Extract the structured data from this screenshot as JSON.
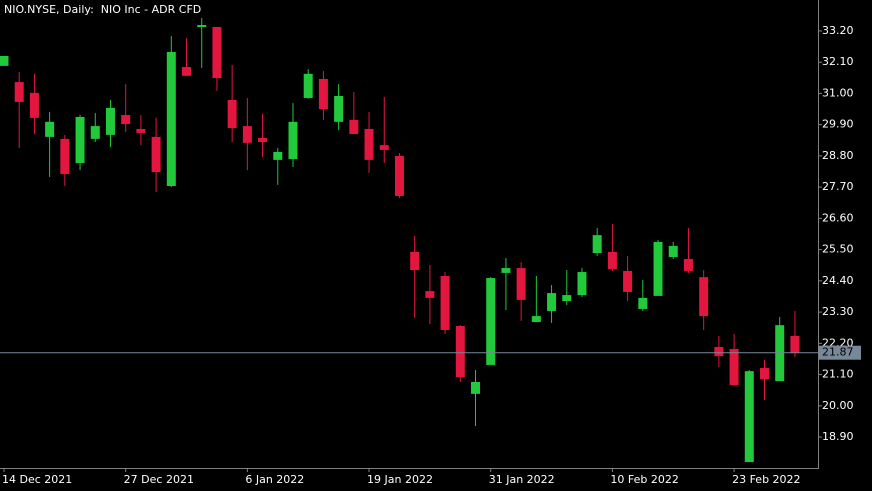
{
  "chart_data": {
    "type": "candlestick",
    "title": "NIO.NYSE, Daily:  NIO Inc - ADR CFD",
    "categories": [
      "14 Dec 2021",
      null,
      null,
      null,
      null,
      null,
      null,
      null,
      "27 Dec 2021",
      null,
      null,
      null,
      null,
      null,
      null,
      null,
      "6 Jan 2022",
      null,
      null,
      null,
      null,
      null,
      null,
      null,
      "19 Jan 2022",
      null,
      null,
      null,
      null,
      null,
      null,
      null,
      "31 Jan 2022",
      null,
      null,
      null,
      null,
      null,
      null,
      null,
      "10 Feb 2022",
      null,
      null,
      null,
      null,
      null,
      null,
      null,
      "23 Feb 2022",
      null,
      null,
      null,
      null
    ],
    "open": [
      31.97,
      31.4,
      31.02,
      29.47,
      29.4,
      28.55,
      29.4,
      29.54,
      30.24,
      29.75,
      29.47,
      27.74,
      31.93,
      33.34,
      33.34,
      30.77,
      29.85,
      29.43,
      28.66,
      28.69,
      30.84,
      31.51,
      30.0,
      30.07,
      29.75,
      29.18,
      28.8,
      25.42,
      24.04,
      24.57,
      22.81,
      20.42,
      21.44,
      24.68,
      24.85,
      22.95,
      23.34,
      23.69,
      23.9,
      25.38,
      25.42,
      24.75,
      23.41,
      23.87,
      25.24,
      25.17,
      24.53,
      22.07,
      22.0,
      18.02,
      21.33,
      20.87,
      22.46
    ],
    "high": [
      32.32,
      31.76,
      31.69,
      30.35,
      29.54,
      30.24,
      30.31,
      30.77,
      31.33,
      30.24,
      30.14,
      33.02,
      32.95,
      33.66,
      33.34,
      32.0,
      30.84,
      30.28,
      29.08,
      30.66,
      31.86,
      31.79,
      31.33,
      31.05,
      30.35,
      30.88,
      28.9,
      25.98,
      24.96,
      24.71,
      22.85,
      21.26,
      24.53,
      25.2,
      25.06,
      24.57,
      24.25,
      24.78,
      24.85,
      26.26,
      26.4,
      25.28,
      24.43,
      25.84,
      25.77,
      26.26,
      24.78,
      22.46,
      22.53,
      21.26,
      21.61,
      23.13,
      23.34
    ],
    "low": [
      31.97,
      29.08,
      29.57,
      28.06,
      27.74,
      28.3,
      29.29,
      29.11,
      29.64,
      29.18,
      27.53,
      27.7,
      31.62,
      31.9,
      31.09,
      29.29,
      28.3,
      28.76,
      27.78,
      28.41,
      30.81,
      30.07,
      29.71,
      29.57,
      28.2,
      28.55,
      27.32,
      23.09,
      22.88,
      22.53,
      20.84,
      19.29,
      21.44,
      23.37,
      22.99,
      22.95,
      22.92,
      23.55,
      23.83,
      25.28,
      24.75,
      23.69,
      23.34,
      23.87,
      25.17,
      24.68,
      22.67,
      21.37,
      20.73,
      18.02,
      20.2,
      20.87,
      21.72
    ],
    "close": [
      32.32,
      30.7,
      30.14,
      30.0,
      28.16,
      30.17,
      29.85,
      30.49,
      29.92,
      29.61,
      28.23,
      32.46,
      31.62,
      33.41,
      31.54,
      29.78,
      29.26,
      29.29,
      28.94,
      30.0,
      31.69,
      30.45,
      30.91,
      29.57,
      28.66,
      29.01,
      27.39,
      24.78,
      23.8,
      22.67,
      21.01,
      20.84,
      24.5,
      24.85,
      23.73,
      23.16,
      23.97,
      23.9,
      24.71,
      26.01,
      24.82,
      24.01,
      23.8,
      25.77,
      25.63,
      24.75,
      23.16,
      21.75,
      20.73,
      21.22,
      20.94,
      22.84,
      21.87
    ],
    "up_color": "#22c93a",
    "down_color": "#e2163f",
    "ylim": [
      17.81,
      34.29
    ],
    "yticks": [
      {
        "value": 33.2,
        "label": "33.20"
      },
      {
        "value": 32.1,
        "label": "32.10"
      },
      {
        "value": 31,
        "label": "31.00"
      },
      {
        "value": 29.9,
        "label": "29.90"
      },
      {
        "value": 28.8,
        "label": "28.80"
      },
      {
        "value": 27.7,
        "label": "27.70"
      },
      {
        "value": 26.6,
        "label": "26.60"
      },
      {
        "value": 25.5,
        "label": "25.50"
      },
      {
        "value": 24.4,
        "label": "24.40"
      },
      {
        "value": 23.3,
        "label": "23.30"
      },
      {
        "value": 22.2,
        "label": "22.20"
      },
      {
        "value": 21.1,
        "label": "21.10"
      },
      {
        "value": 20,
        "label": "20.00"
      },
      {
        "value": 18.9,
        "label": "18.90"
      }
    ],
    "price_line": {
      "value": 21.87,
      "color": "#778899"
    }
  }
}
